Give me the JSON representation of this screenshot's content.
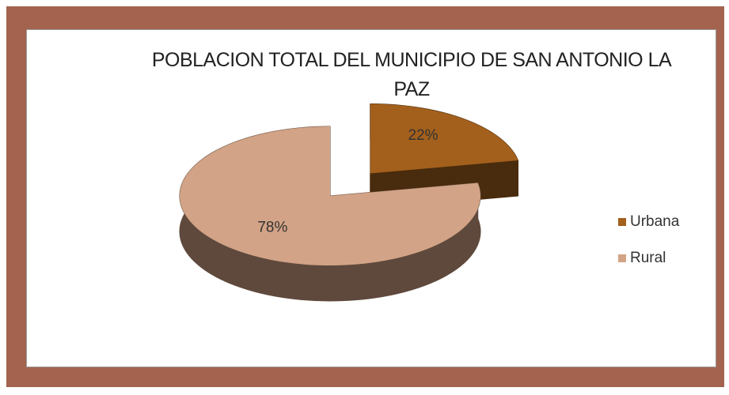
{
  "chart_data": {
    "type": "pie",
    "title": "POBLACION TOTAL DEL MUNICIPIO DE SAN ANTONIO LA PAZ",
    "categories": [
      "Urbana",
      "Rural"
    ],
    "values": [
      22,
      78
    ],
    "value_labels": [
      "22%",
      "78%"
    ],
    "colors": [
      "#a3601c",
      "#d2a386"
    ],
    "legend": "right"
  }
}
